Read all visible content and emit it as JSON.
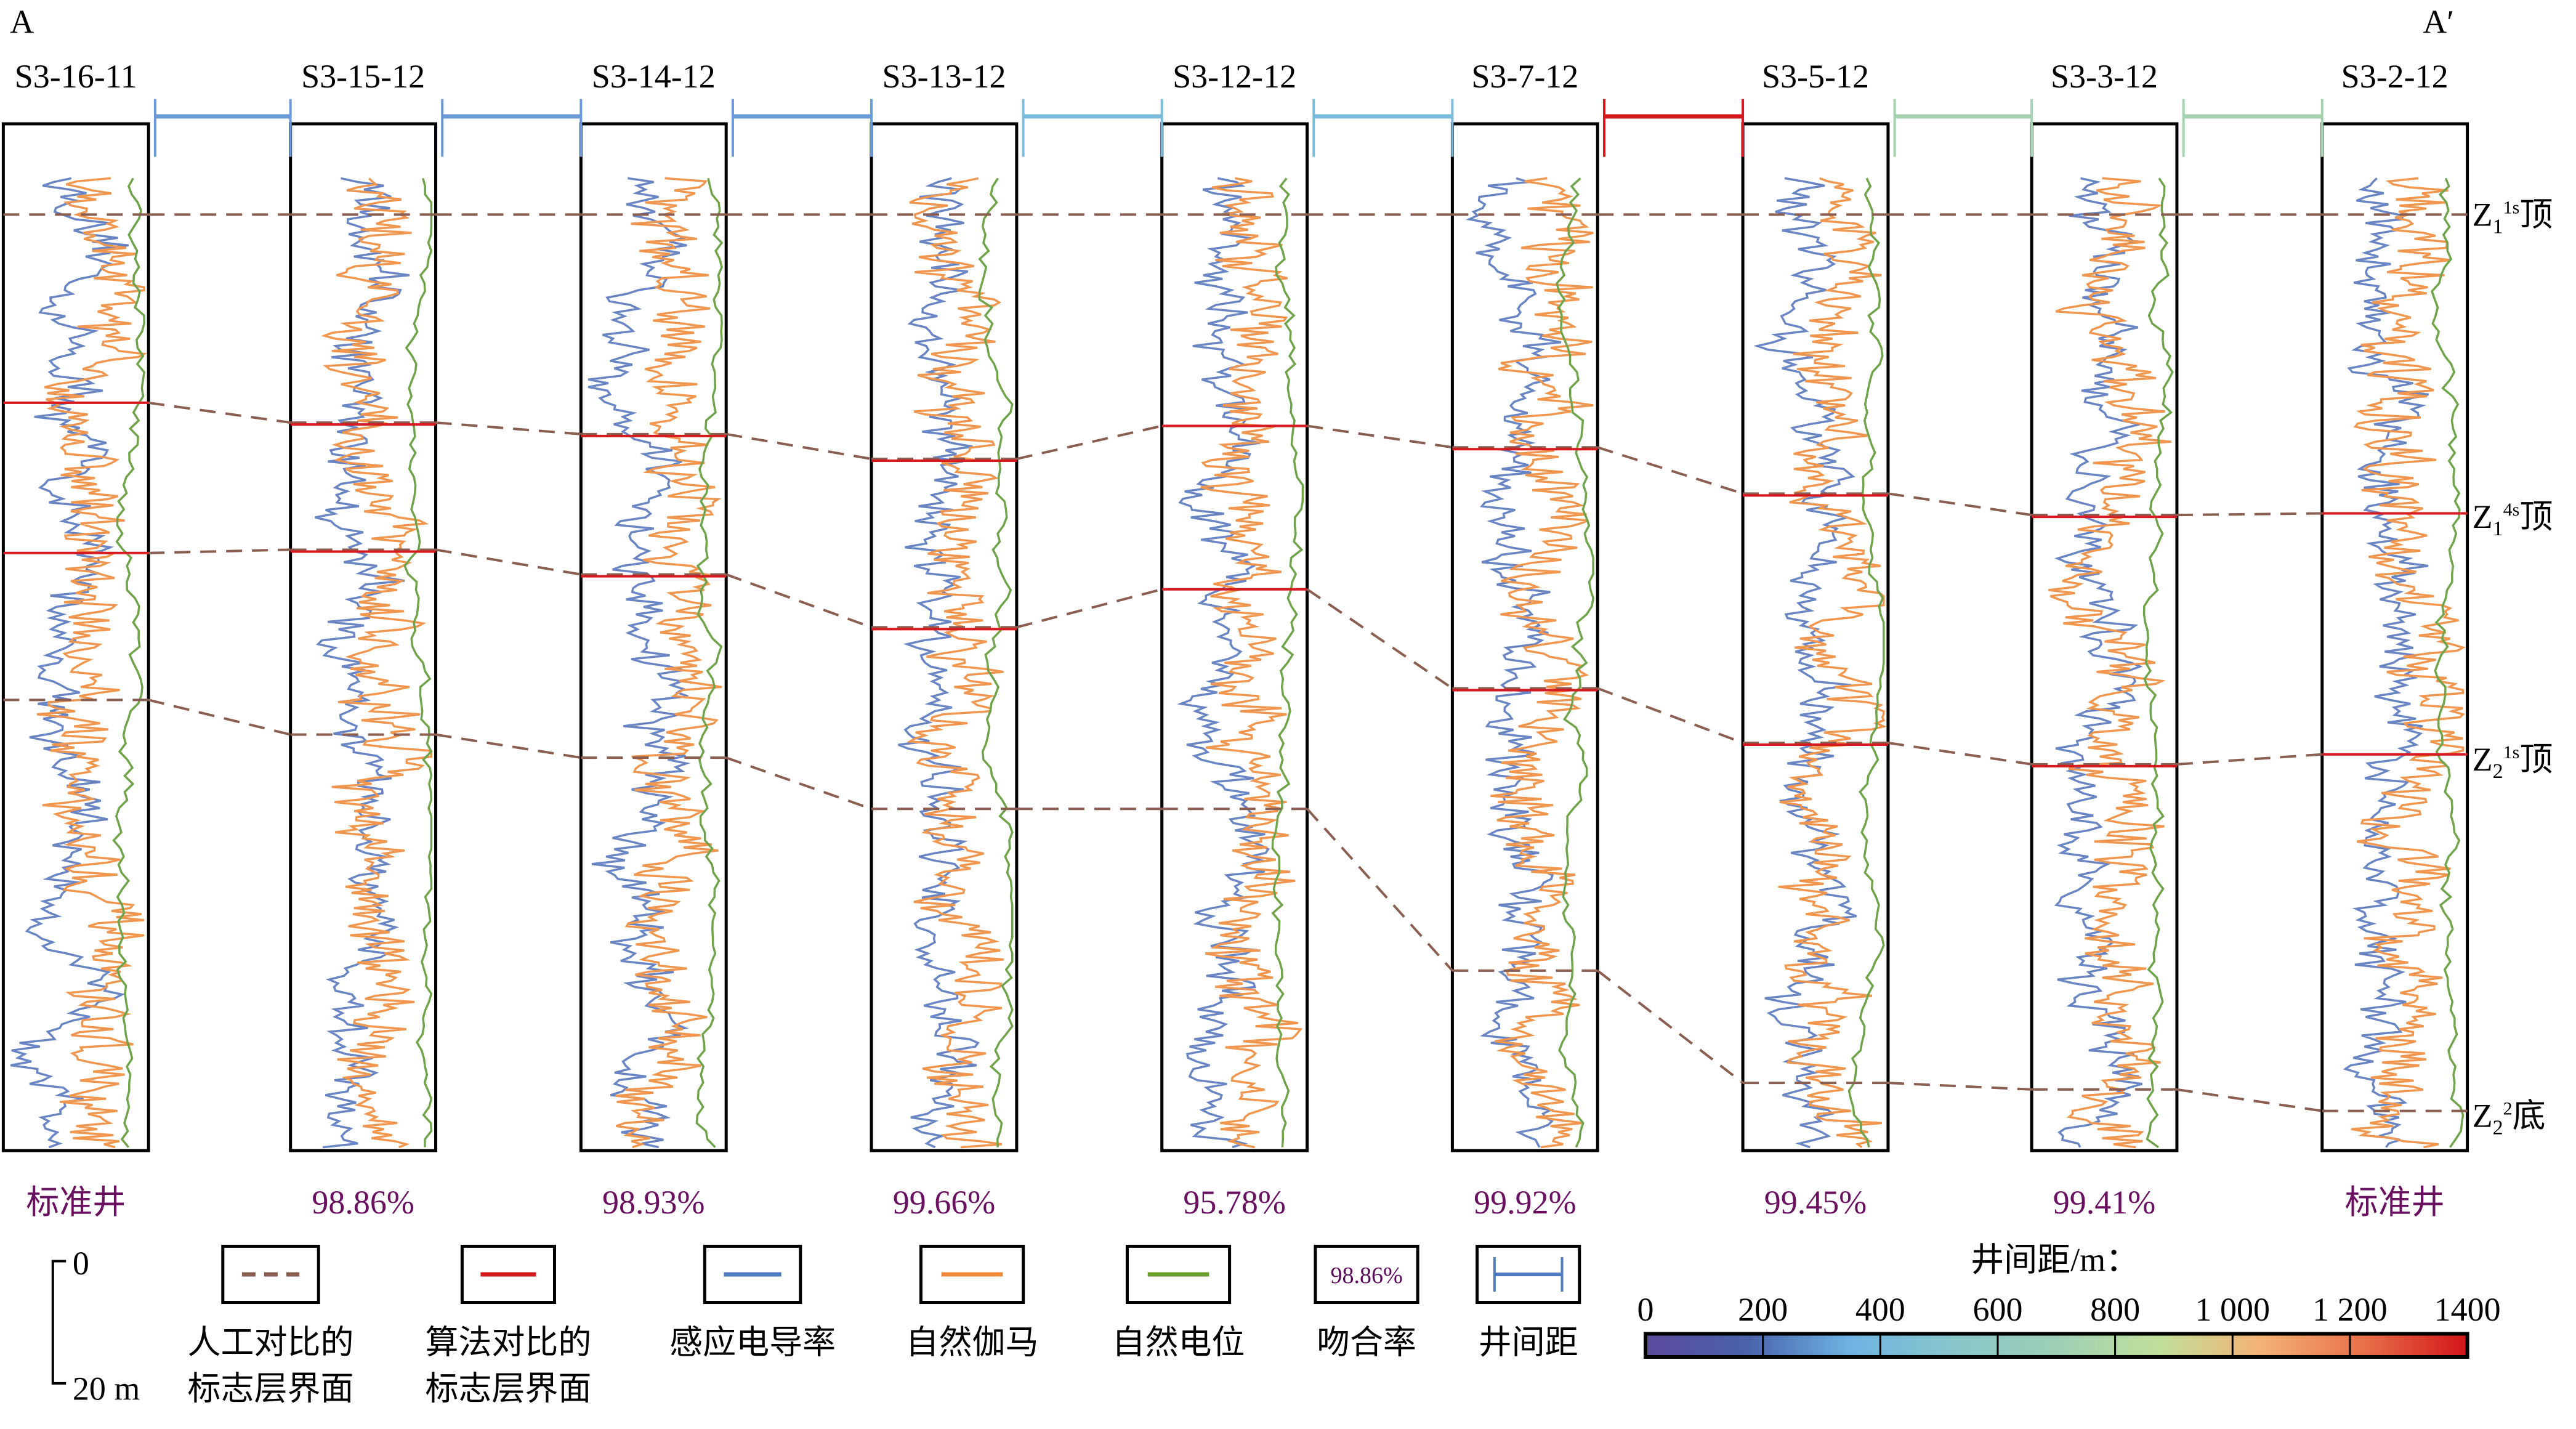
{
  "section": {
    "start_label": "A",
    "end_label": "A′"
  },
  "wells": [
    {
      "name": "S3-16-11",
      "match": "标准井",
      "markers": [
        130,
        244,
        335,
        424
      ],
      "marker_types": [
        "dash",
        "red",
        "red",
        "dash"
      ]
    },
    {
      "name": "S3-15-12",
      "match": "98.86%",
      "markers": [
        130,
        256,
        333,
        445
      ],
      "marker_types": [
        "dash",
        "both",
        "both",
        "dash"
      ]
    },
    {
      "name": "S3-14-12",
      "match": "98.93%",
      "markers": [
        130,
        263,
        348,
        459
      ],
      "marker_types": [
        "dash",
        "both",
        "both",
        "dash"
      ]
    },
    {
      "name": "S3-13-12",
      "match": "99.66%",
      "markers": [
        130,
        278,
        380,
        490
      ],
      "marker_types": [
        "dash",
        "both",
        "both",
        "dash"
      ]
    },
    {
      "name": "S3-12-12",
      "match": "95.78%",
      "markers": [
        130,
        258,
        357,
        490
      ],
      "marker_types": [
        "dash",
        "red",
        "red",
        "dash"
      ]
    },
    {
      "name": "S3-7-12",
      "match": "99.92%",
      "markers": [
        130,
        271,
        417,
        588
      ],
      "marker_types": [
        "dash",
        "both",
        "both",
        "dash"
      ]
    },
    {
      "name": "S3-5-12",
      "match": "99.45%",
      "markers": [
        130,
        299,
        450,
        656
      ],
      "marker_types": [
        "dash",
        "both",
        "both",
        "dash"
      ]
    },
    {
      "name": "S3-3-12",
      "match": "99.41%",
      "markers": [
        130,
        312,
        463,
        660
      ],
      "marker_types": [
        "dash",
        "both",
        "both",
        "dash"
      ]
    },
    {
      "name": "S3-2-12",
      "match": "标准井",
      "markers": [
        130,
        311,
        457,
        673
      ],
      "marker_types": [
        "dash",
        "red",
        "red",
        "dash"
      ]
    }
  ],
  "spacing_colors": [
    "#6a9ad8",
    "#6a9ad8",
    "#6a9ad8",
    "#7bbcdc",
    "#7bbcdc",
    "#d61a1f",
    "#a6d2b0",
    "#a6d2b0",
    "#6a9ad8"
  ],
  "horizons": [
    {
      "name": "Z",
      "sub": "1",
      "sup": "1s",
      "suffix": "顶"
    },
    {
      "name": "Z",
      "sub": "1",
      "sup": "4s",
      "suffix": "顶"
    },
    {
      "name": "Z",
      "sub": "2",
      "sup": "1s",
      "suffix": "顶"
    },
    {
      "name": "Z",
      "sub": "2",
      "sup": "2",
      "suffix": "底"
    }
  ],
  "scale": {
    "top": "0",
    "bottom": "20 m"
  },
  "legend": [
    {
      "type": "dash",
      "color": "#8b5e52",
      "line1": "人工对比的",
      "line2": "标志层界面"
    },
    {
      "type": "line",
      "color": "#d61a1f",
      "line1": "算法对比的",
      "line2": "标志层界面"
    },
    {
      "type": "line",
      "color": "#4f7bc0",
      "line1": "感应电导率",
      "line2": ""
    },
    {
      "type": "line",
      "color": "#f08a3a",
      "line1": "自然伽马",
      "line2": ""
    },
    {
      "type": "line",
      "color": "#6aa02a",
      "line1": "自然电位",
      "line2": ""
    },
    {
      "type": "text",
      "color": "#5a0a5a",
      "sample": "98.86%",
      "line1": "吻合率",
      "line2": ""
    },
    {
      "type": "bar",
      "color": "#4f7bc0",
      "line1": "井间距",
      "line2": ""
    }
  ],
  "colorbar": {
    "title": "井间距/m：",
    "ticks": [
      "0",
      "200",
      "400",
      "600",
      "800",
      "1 000",
      "1 200",
      "1400"
    ],
    "range": [
      0,
      1400
    ]
  },
  "colors": {
    "gr": "#f0964e",
    "cond": "#6985c4",
    "sp": "#6fa44a",
    "dash": "#8b5e52",
    "red": "#d61a1f",
    "match": "#6a1060"
  }
}
